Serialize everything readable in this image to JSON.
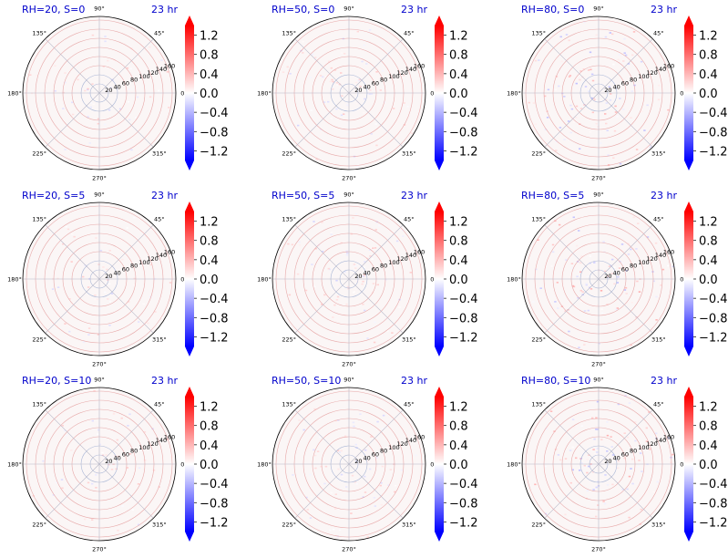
{
  "chart_data": {
    "type": "polar-heatmap",
    "grid": true,
    "radial_ticks": [
      "20",
      "40",
      "60",
      "80",
      "100",
      "120",
      "140",
      "160"
    ],
    "angular_ticks": [
      "0°",
      "45°",
      "90°",
      "135°",
      "180°",
      "225°",
      "270°",
      "315°"
    ],
    "colorbar": {
      "colormap": "bwr",
      "ticks": [
        "1.2",
        "0.8",
        "0.4",
        "0.0",
        "−0.4",
        "−0.8",
        "−1.2"
      ],
      "tick_values": [
        1.2,
        0.8,
        0.4,
        0.0,
        -0.4,
        -0.8,
        -1.2
      ],
      "range": [
        -1.4,
        1.4
      ],
      "extend": "both"
    },
    "time_label": "23 hr",
    "panels": [
      {
        "title": "RH=20, S=0"
      },
      {
        "title": "RH=50, S=0"
      },
      {
        "title": "RH=80, S=0"
      },
      {
        "title": "RH=20, S=5"
      },
      {
        "title": "RH=50, S=5"
      },
      {
        "title": "RH=80, S=5"
      },
      {
        "title": "RH=20, S=10"
      },
      {
        "title": "RH=50, S=10"
      },
      {
        "title": "RH=80, S=10"
      }
    ]
  },
  "colors": {
    "title": "#0000cc",
    "gridline": "#e7a8a8",
    "inner_gridline": "#aab7d6",
    "positive_max": "#ff0000",
    "negative_max": "#0000ff"
  }
}
